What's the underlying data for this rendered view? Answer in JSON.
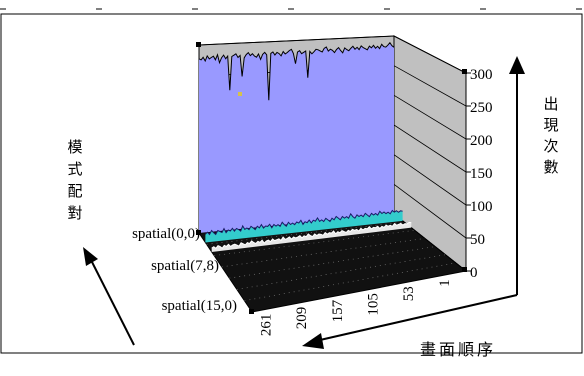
{
  "chart_data": {
    "type": "area",
    "projection": "3d",
    "x_label": "畫面順序",
    "y_label": "出現次數",
    "z_label": "模式配對",
    "x_ticks": [
      "261",
      "209",
      "157",
      "105",
      "53",
      "1"
    ],
    "y_ticks": [
      "0",
      "50",
      "100",
      "150",
      "200",
      "250",
      "300"
    ],
    "y_range": [
      0,
      300
    ],
    "z_ticks": [
      "spatial(0,0)",
      "spatial(7,8)",
      "spatial(15,0)"
    ],
    "series": [
      {
        "values": [
          278,
          276,
          280,
          274,
          282,
          277,
          279,
          281,
          275,
          283,
          270,
          278,
          282,
          276,
          280,
          225,
          279,
          281,
          283,
          277,
          280,
          246,
          276,
          281,
          284,
          279,
          282,
          278,
          276,
          281,
          272,
          280,
          283,
          279,
          205,
          281,
          283,
          278,
          282,
          280,
          276,
          283,
          279,
          281,
          284,
          286,
          279,
          262,
          281,
          283,
          278,
          280,
          282,
          238,
          281,
          277,
          280,
          284,
          283,
          281,
          279,
          285,
          287,
          280,
          283,
          281,
          277,
          282,
          285,
          280,
          276,
          284,
          281,
          279,
          283,
          286,
          281,
          284,
          280,
          286,
          283,
          281,
          279,
          285,
          282,
          286,
          281,
          284,
          280,
          287,
          283,
          282,
          285,
          289,
          284,
          281
        ]
      },
      {
        "values": [
          13,
          16,
          12,
          18,
          14,
          11,
          17,
          15,
          13,
          19,
          12,
          16,
          14,
          18,
          13,
          17,
          15,
          12,
          20,
          14,
          16,
          13,
          18,
          15,
          12,
          17,
          14,
          19,
          13,
          16,
          15,
          18,
          12,
          17,
          14,
          16,
          13,
          19,
          15,
          12,
          18,
          14,
          16,
          13,
          17,
          15,
          19,
          12,
          16,
          14,
          18,
          13,
          17,
          15,
          20,
          14,
          16,
          13,
          18,
          15,
          12,
          17,
          14,
          19,
          16,
          13,
          18,
          15,
          17,
          14,
          21,
          16,
          13,
          18,
          15,
          17,
          14,
          19,
          16,
          13,
          18,
          15,
          17,
          14,
          20,
          16,
          18,
          15,
          17,
          14,
          19,
          16,
          18,
          15,
          17,
          16
        ]
      },
      {
        "values": [
          6,
          8,
          5,
          9,
          7,
          4,
          8,
          6,
          9,
          5,
          7,
          8,
          6,
          4,
          9,
          7,
          5,
          8,
          6,
          10,
          7,
          5,
          8,
          6,
          9,
          4,
          7,
          8,
          5,
          9,
          6,
          7,
          8,
          5,
          10,
          6,
          7,
          9,
          5,
          8,
          6,
          7,
          9,
          5,
          8,
          6,
          10,
          7,
          5,
          9,
          6,
          8,
          7,
          5,
          9,
          6,
          8,
          7,
          10,
          5,
          8,
          6,
          9,
          7,
          5,
          8,
          6,
          9,
          7,
          8,
          5,
          9,
          6,
          8,
          7,
          10,
          6,
          8,
          7,
          9,
          5,
          8,
          6,
          9,
          7,
          8,
          6,
          10,
          7,
          8,
          9,
          6,
          8,
          7,
          9,
          8
        ]
      }
    ]
  }
}
